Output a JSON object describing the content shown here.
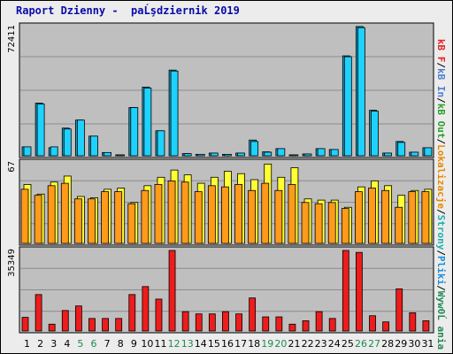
{
  "title": "Raport Dzienny -  paĹşdziernik 2019",
  "colors": {
    "panel": "#bfbfbf",
    "grid": "#8c8c8c",
    "cyan_face": "#1ed2ff",
    "cyan_back": "#1aa0c8",
    "yellow_face": "#ffff33",
    "orange_face": "#ff9a1a",
    "red_face": "#ee1c1c",
    "weekday_label": "#000000",
    "weekend_label": "#1f8a52"
  },
  "legend": [
    {
      "text": "Wyw0Ĺ ania",
      "color": "#1f8a52"
    },
    {
      "text": "/",
      "color": "#000000"
    },
    {
      "text": "Pliki",
      "color": "#1a8cd8"
    },
    {
      "text": "/",
      "color": "#000000"
    },
    {
      "text": "Strony",
      "color": "#1fb0b0"
    },
    {
      "text": "/",
      "color": "#000000"
    },
    {
      "text": "Lokalizacje",
      "color": "#e88a00"
    },
    {
      "text": "/",
      "color": "#000000"
    },
    {
      "text": "kB Out",
      "color": "#2ca02c"
    },
    {
      "text": "/",
      "color": "#000000"
    },
    {
      "text": "kB In",
      "color": "#4a7fd0"
    },
    {
      "text": "/",
      "color": "#000000"
    },
    {
      "text": "kB F",
      "color": "#e82020"
    }
  ],
  "chart_data": [
    {
      "type": "bar",
      "name": "top",
      "categories": [
        "1",
        "2",
        "3",
        "4",
        "5",
        "6",
        "7",
        "8",
        "9",
        "10",
        "11",
        "12",
        "13",
        "14",
        "15",
        "16",
        "17",
        "18",
        "19",
        "20",
        "21",
        "22",
        "23",
        "24",
        "25",
        "26",
        "27",
        "28",
        "29",
        "30",
        "31"
      ],
      "weekend_days": [
        5,
        6,
        12,
        13,
        19,
        20,
        26,
        27
      ],
      "ymax_label": "72411",
      "ylim": [
        0,
        72411
      ],
      "series": [
        {
          "values": [
            5000,
            29500,
            4500,
            15500,
            20000,
            11000,
            1800,
            500,
            27000,
            38500,
            14000,
            48000,
            1200,
            800,
            1500,
            800,
            1500,
            8800,
            2200,
            4000,
            500,
            1000,
            4000,
            3500,
            56000,
            72411,
            25500,
            1500,
            8000,
            2000,
            4500
          ]
        },
        {
          "values": [
            5000,
            29000,
            5000,
            15000,
            20000,
            11000,
            1800,
            500,
            27000,
            38000,
            14000,
            47500,
            1200,
            800,
            1500,
            800,
            1500,
            8000,
            2000,
            4000,
            500,
            1000,
            4000,
            3500,
            55500,
            71800,
            25000,
            1500,
            7500,
            2000,
            4500
          ]
        }
      ]
    },
    {
      "type": "bar",
      "name": "middle",
      "categories": [
        "1",
        "2",
        "3",
        "4",
        "5",
        "6",
        "7",
        "8",
        "9",
        "10",
        "11",
        "12",
        "13",
        "14",
        "15",
        "16",
        "17",
        "18",
        "19",
        "20",
        "21",
        "22",
        "23",
        "24",
        "25",
        "26",
        "27",
        "28",
        "29",
        "30",
        "31"
      ],
      "ymax_label": "67",
      "ylim": [
        0,
        67
      ],
      "series": [
        {
          "values": [
            49,
            41,
            51,
            56,
            39,
            38,
            45,
            46,
            34,
            48,
            55,
            61,
            57,
            50,
            55,
            60,
            58,
            53,
            66,
            55,
            63,
            37,
            36,
            36,
            30,
            47,
            52,
            48,
            40,
            44,
            45
          ]
        },
        {
          "values": [
            45,
            40,
            48,
            50,
            37,
            37,
            43,
            43,
            33,
            44,
            49,
            52,
            51,
            43,
            48,
            47,
            49,
            44,
            50,
            44,
            49,
            34,
            33,
            34,
            29,
            43,
            46,
            44,
            30,
            43,
            43
          ]
        }
      ]
    },
    {
      "type": "bar",
      "name": "bottom",
      "categories": [
        "1",
        "2",
        "3",
        "4",
        "5",
        "6",
        "7",
        "8",
        "9",
        "10",
        "11",
        "12",
        "13",
        "14",
        "15",
        "16",
        "17",
        "18",
        "19",
        "20",
        "21",
        "22",
        "23",
        "24",
        "25",
        "26",
        "27",
        "28",
        "29",
        "30",
        "31"
      ],
      "ymax_label": "35349",
      "ylim": [
        0,
        35349
      ],
      "series": [
        {
          "values": [
            6000,
            16000,
            3000,
            9000,
            11000,
            5500,
            5500,
            5500,
            16000,
            19500,
            14000,
            35349,
            8500,
            7500,
            7500,
            8500,
            7500,
            14500,
            6200,
            6200,
            3000,
            4500,
            8500,
            5500,
            35349,
            34500,
            6700,
            4000,
            18500,
            8000,
            4500
          ]
        }
      ]
    }
  ]
}
